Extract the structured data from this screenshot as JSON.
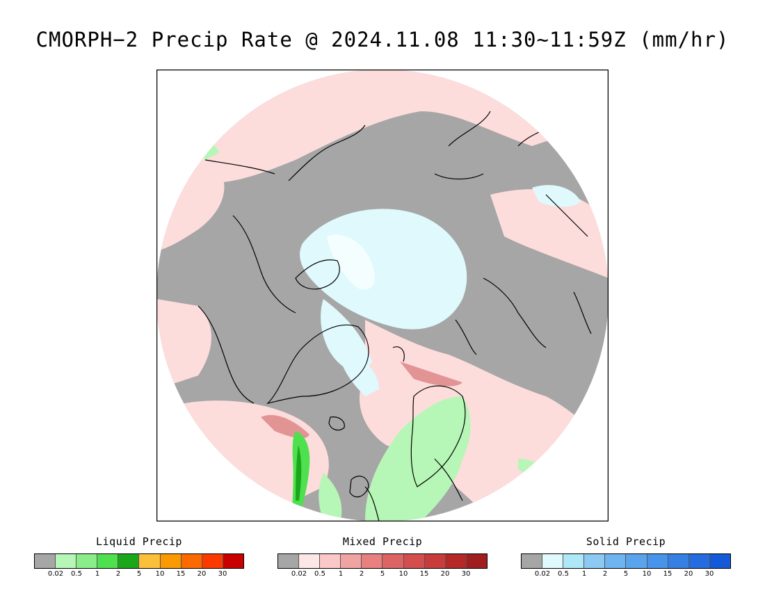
{
  "title": "CMORPH−2 Precip Rate @ 2024.11.08 11:30~11:59Z (mm/hr)",
  "map": {
    "projection": "north-polar-stereographic",
    "colors": {
      "no_precip": "#a6a6a6",
      "mixed_light": "#fddcdc",
      "solid_light": "#dff9fd",
      "liquid_light": "#b6f6b6",
      "liquid_medium": "#4ee04e",
      "liquid_heavy": "#1aa81a",
      "mixed_medium": "#e29494",
      "coastline": "#000000"
    }
  },
  "legends": [
    {
      "title": "Liquid Precip",
      "ticks": [
        "0.02",
        "0.5",
        "1",
        "2",
        "5",
        "10",
        "15",
        "20",
        "30"
      ],
      "colors": [
        "#a6a6a6",
        "#b6f6b6",
        "#8aed8a",
        "#4ee04e",
        "#1aa81a",
        "#fbbf3a",
        "#fb9a00",
        "#fb6a00",
        "#fb3a00",
        "#c80000"
      ]
    },
    {
      "title": "Mixed Precip",
      "ticks": [
        "0.02",
        "0.5",
        "1",
        "2",
        "5",
        "10",
        "15",
        "20",
        "30"
      ],
      "colors": [
        "#a6a6a6",
        "#fde6e6",
        "#fbc8c8",
        "#f0a3a3",
        "#e88080",
        "#dd6464",
        "#d44e4e",
        "#c83c3c",
        "#b42828",
        "#a01e1e"
      ]
    },
    {
      "title": "Solid Precip",
      "ticks": [
        "0.02",
        "0.5",
        "1",
        "2",
        "5",
        "10",
        "15",
        "20",
        "30"
      ],
      "colors": [
        "#a6a6a6",
        "#dff9fd",
        "#aee8f8",
        "#8ccaf4",
        "#6eb4f0",
        "#5aa4ee",
        "#4894ea",
        "#3680e4",
        "#246ce0",
        "#1459d6"
      ]
    }
  ]
}
